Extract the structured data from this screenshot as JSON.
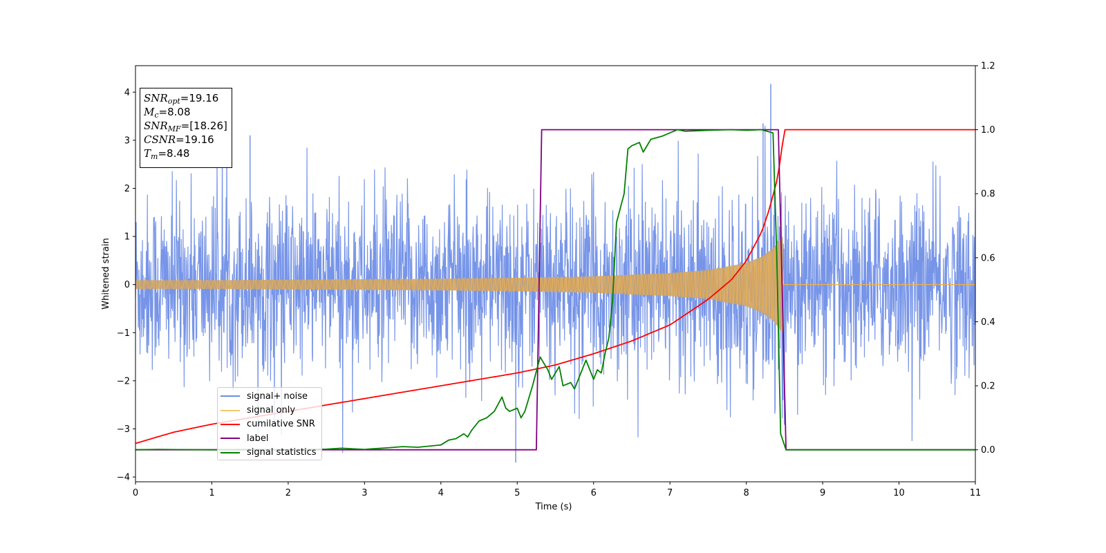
{
  "chart_data": {
    "type": "line",
    "xlabel": "Time (s)",
    "ylabel": "Whitened strain",
    "ylabel_right": "",
    "xlim": [
      0,
      11
    ],
    "ylim_left": [
      -4.1,
      4.55
    ],
    "ylim_right": [
      -0.1,
      1.2
    ],
    "x_ticks": [
      0,
      1,
      2,
      3,
      4,
      5,
      6,
      7,
      8,
      9,
      10,
      11
    ],
    "y_ticks_left": [
      -4,
      -3,
      -2,
      -1,
      0,
      1,
      2,
      3,
      4
    ],
    "y_ticks_right": [
      0.0,
      0.2,
      0.4,
      0.6,
      0.8,
      1.0,
      1.2
    ],
    "grid": false,
    "legend_position": "lower-left",
    "annotation": {
      "snr_opt": "19.16",
      "mc": "8.08",
      "snr_mf": "[18.26]",
      "csnr": "19.16",
      "tm": "8.48"
    },
    "series": [
      {
        "name": "signal+ noise",
        "axis": "left",
        "color": "#6b8ce6",
        "description_values": {
          "noise_std": 0.9,
          "merger_time": 8.48,
          "max": 4.17,
          "min": -3.7
        }
      },
      {
        "name": "signal only",
        "axis": "left",
        "color": "#f5b041",
        "envelope": {
          "x": [
            0,
            1,
            2,
            3,
            4,
            5,
            6,
            7,
            7.5,
            8,
            8.2,
            8.35,
            8.45,
            8.48
          ],
          "amplitude": [
            0.09,
            0.09,
            0.1,
            0.11,
            0.12,
            0.14,
            0.17,
            0.24,
            0.3,
            0.45,
            0.58,
            0.75,
            0.95,
            1.0
          ]
        }
      },
      {
        "name": "cumilative SNR",
        "axis": "right",
        "color": "#ff0000",
        "x": [
          0,
          0.5,
          1,
          1.5,
          2,
          2.5,
          3,
          3.5,
          4,
          4.5,
          5,
          5.5,
          6,
          6.5,
          7,
          7.5,
          7.8,
          8.0,
          8.2,
          8.3,
          8.4,
          8.45,
          8.48,
          8.5,
          11
        ],
        "y": [
          0.02,
          0.055,
          0.08,
          0.1,
          0.12,
          0.14,
          0.16,
          0.18,
          0.2,
          0.22,
          0.24,
          0.265,
          0.3,
          0.34,
          0.39,
          0.47,
          0.53,
          0.59,
          0.68,
          0.75,
          0.84,
          0.91,
          0.97,
          1.0,
          1.0
        ]
      },
      {
        "name": "label",
        "axis": "right",
        "color": "#800080",
        "x": [
          0,
          5.25,
          5.32,
          8.42,
          8.52,
          11
        ],
        "y": [
          0,
          0,
          1,
          1,
          0,
          0
        ]
      },
      {
        "name": "signal statistics",
        "axis": "right",
        "color": "#008000",
        "x": [
          0,
          0.3,
          1,
          1.5,
          2,
          2.5,
          2.7,
          3,
          3.1,
          3.3,
          3.5,
          3.7,
          4,
          4.1,
          4.2,
          4.3,
          4.35,
          4.4,
          4.5,
          4.6,
          4.7,
          4.8,
          4.85,
          4.9,
          5.0,
          5.05,
          5.1,
          5.2,
          5.3,
          5.35,
          5.4,
          5.45,
          5.55,
          5.6,
          5.7,
          5.75,
          5.8,
          5.9,
          6.0,
          6.05,
          6.1,
          6.15,
          6.2,
          6.25,
          6.3,
          6.4,
          6.45,
          6.5,
          6.6,
          6.65,
          6.75,
          6.9,
          7.0,
          7.1,
          7.2,
          7.5,
          7.8,
          8.0,
          8.2,
          8.35,
          8.4,
          8.45,
          8.52,
          9,
          11
        ],
        "y": [
          0,
          0.001,
          0,
          0.001,
          0,
          0.002,
          0.005,
          0.001,
          0.003,
          0.006,
          0.01,
          0.008,
          0.015,
          0.03,
          0.035,
          0.05,
          0.04,
          0.06,
          0.09,
          0.1,
          0.12,
          0.165,
          0.13,
          0.12,
          0.13,
          0.1,
          0.12,
          0.2,
          0.29,
          0.27,
          0.25,
          0.22,
          0.26,
          0.2,
          0.21,
          0.19,
          0.22,
          0.28,
          0.22,
          0.25,
          0.24,
          0.3,
          0.35,
          0.47,
          0.71,
          0.8,
          0.94,
          0.95,
          0.96,
          0.93,
          0.97,
          0.98,
          0.99,
          1.0,
          0.995,
          0.998,
          1.0,
          0.998,
          1.0,
          0.99,
          0.6,
          0.05,
          0,
          0,
          0
        ]
      }
    ]
  }
}
